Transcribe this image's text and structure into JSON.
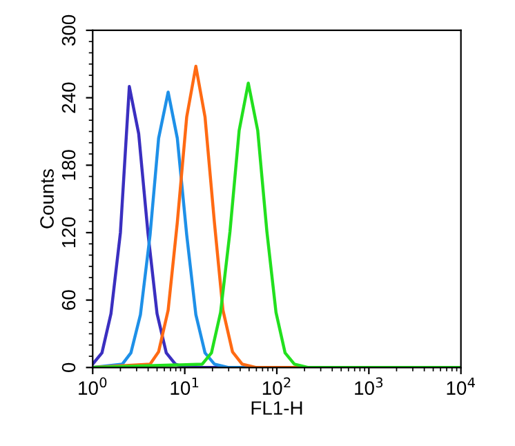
{
  "chart_data": {
    "type": "line",
    "xlabel": "FL1-H",
    "ylabel": "Counts",
    "log": "x",
    "xlim": [
      1,
      10000
    ],
    "xticks": [
      {
        "value": 1,
        "label": "10$^{0}$"
      },
      {
        "value": 10,
        "label": "10$^{1}$"
      },
      {
        "value": 100,
        "label": "10$^{2}$"
      },
      {
        "value": 1000,
        "label": "10$^{3}$"
      },
      {
        "value": 10000,
        "label": "10$^{4}$"
      }
    ],
    "ylim": [
      0,
      300
    ],
    "yticks": [
      0,
      60,
      120,
      180,
      240,
      300
    ],
    "grid": false,
    "legend": false,
    "marker": "none",
    "line_style": "solid",
    "series": [
      {
        "color": "#3a2fc0",
        "x": [
          1,
          1.26,
          1.58,
          2.0,
          2.5,
          3.16,
          3.98,
          5.0,
          6.3,
          7.9,
          10,
          10000
        ],
        "values": [
          3,
          13,
          48,
          120,
          250,
          208,
          120,
          48,
          13,
          3,
          0,
          0
        ]
      },
      {
        "color": "#1e90e8",
        "x": [
          1,
          2.1,
          2.6,
          3.3,
          4.2,
          5.2,
          6.6,
          8.3,
          10.5,
          13.2,
          16.6,
          21,
          30,
          10000
        ],
        "values": [
          0,
          3,
          13,
          47,
          118,
          204,
          245,
          204,
          118,
          47,
          13,
          3,
          0,
          0
        ]
      },
      {
        "color": "#ff6a13",
        "x": [
          1,
          4.2,
          5.2,
          6.6,
          8.3,
          10.5,
          13.2,
          16.6,
          21,
          26,
          33,
          42,
          60,
          10000
        ],
        "values": [
          0,
          3,
          14,
          51,
          129,
          223,
          268,
          223,
          129,
          51,
          14,
          3,
          0,
          0
        ]
      },
      {
        "color": "#22e01e",
        "x": [
          1,
          15.5,
          19.5,
          24.5,
          31,
          39,
          49,
          62,
          78,
          98,
          123,
          155,
          220,
          10000
        ],
        "values": [
          0,
          3,
          13,
          49,
          121,
          211,
          253,
          211,
          121,
          49,
          13,
          3,
          0,
          0
        ]
      }
    ]
  }
}
